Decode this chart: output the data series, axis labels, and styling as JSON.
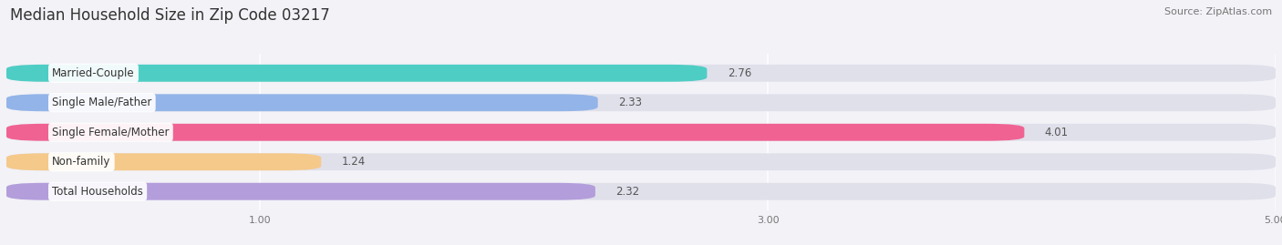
{
  "title": "Median Household Size in Zip Code 03217",
  "source": "Source: ZipAtlas.com",
  "categories": [
    "Married-Couple",
    "Single Male/Father",
    "Single Female/Mother",
    "Non-family",
    "Total Households"
  ],
  "values": [
    2.76,
    2.33,
    4.01,
    1.24,
    2.32
  ],
  "bar_colors": [
    "#4ecdc4",
    "#92b4e8",
    "#f06292",
    "#f5c98a",
    "#b39ddb"
  ],
  "bg_color": "#f2f2f7",
  "bar_bg_color": "#e0e0eb",
  "xlim_min": 0,
  "xlim_max": 5.0,
  "xticks": [
    1.0,
    3.0,
    5.0
  ],
  "xtick_labels": [
    "1.00",
    "3.00",
    "5.00"
  ],
  "title_fontsize": 12,
  "source_fontsize": 8,
  "label_fontsize": 8.5,
  "value_fontsize": 8.5,
  "bar_height": 0.58,
  "fig_width": 14.06,
  "fig_height": 2.69,
  "dpi": 100,
  "value_inside_color": "#ffffff",
  "value_outside_color": "#555555",
  "inside_threshold": 4.5
}
